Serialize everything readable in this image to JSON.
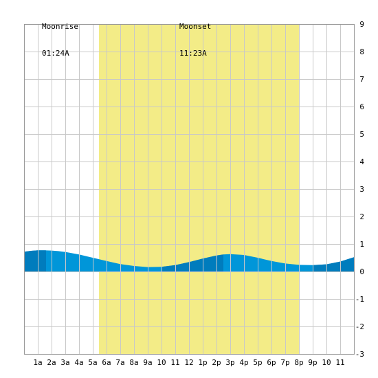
{
  "moon": {
    "rise_label": "Moonrise",
    "rise_time": "01:24A",
    "set_label": "Moonset",
    "set_time": "11:23A"
  },
  "chart_data": {
    "type": "area",
    "title": "",
    "xlabel": "",
    "ylabel": "",
    "x_unit": "hour of day",
    "xlim": [
      -1,
      23
    ],
    "ylim": [
      -3,
      9
    ],
    "x_ticks": [
      0,
      1,
      2,
      3,
      4,
      5,
      6,
      7,
      8,
      9,
      10,
      11,
      12,
      13,
      14,
      15,
      16,
      17,
      18,
      19,
      20,
      21,
      22
    ],
    "x_tick_labels": [
      "1a",
      "2a",
      "3a",
      "4a",
      "5a",
      "6a",
      "7a",
      "8a",
      "9a",
      "10",
      "11",
      "12",
      "1p",
      "2p",
      "3p",
      "4p",
      "5p",
      "6p",
      "7p",
      "8p",
      "9p",
      "10",
      "11"
    ],
    "y_ticks": [
      -3,
      -2,
      -1,
      0,
      1,
      2,
      3,
      4,
      5,
      6,
      7,
      8,
      9
    ],
    "y_tick_labels": [
      "-3",
      "-2",
      "-1",
      "0",
      "1",
      "2",
      "3",
      "4",
      "5",
      "6",
      "7",
      "8",
      "9"
    ],
    "grid": true,
    "daylight_band": [
      4.45,
      19.0
    ],
    "moonrise_hour": 0.4,
    "moonset_hour": 10.4,
    "series": [
      {
        "x": [
          -1,
          -0.5,
          0,
          0.5,
          1,
          1.5,
          2,
          3,
          4,
          5,
          6,
          7,
          8,
          9,
          10,
          11,
          12,
          13,
          13.5,
          14,
          15,
          16,
          17,
          18,
          19,
          20,
          21,
          22,
          23
        ],
        "values": [
          0.72,
          0.75,
          0.77,
          0.77,
          0.76,
          0.74,
          0.71,
          0.62,
          0.5,
          0.38,
          0.27,
          0.2,
          0.16,
          0.17,
          0.23,
          0.34,
          0.47,
          0.58,
          0.62,
          0.63,
          0.6,
          0.5,
          0.38,
          0.29,
          0.24,
          0.23,
          0.26,
          0.36,
          0.52
        ]
      }
    ],
    "colors": {
      "daylight": "#f3ec87",
      "water_light": "#0096d9",
      "water_dark": "#007cbd",
      "grid": "#c8c8c8",
      "frame": "#999999"
    },
    "dark_bands": [
      [
        -1,
        0.6
      ],
      [
        9.0,
        13.5
      ],
      [
        20.0,
        23
      ]
    ]
  }
}
